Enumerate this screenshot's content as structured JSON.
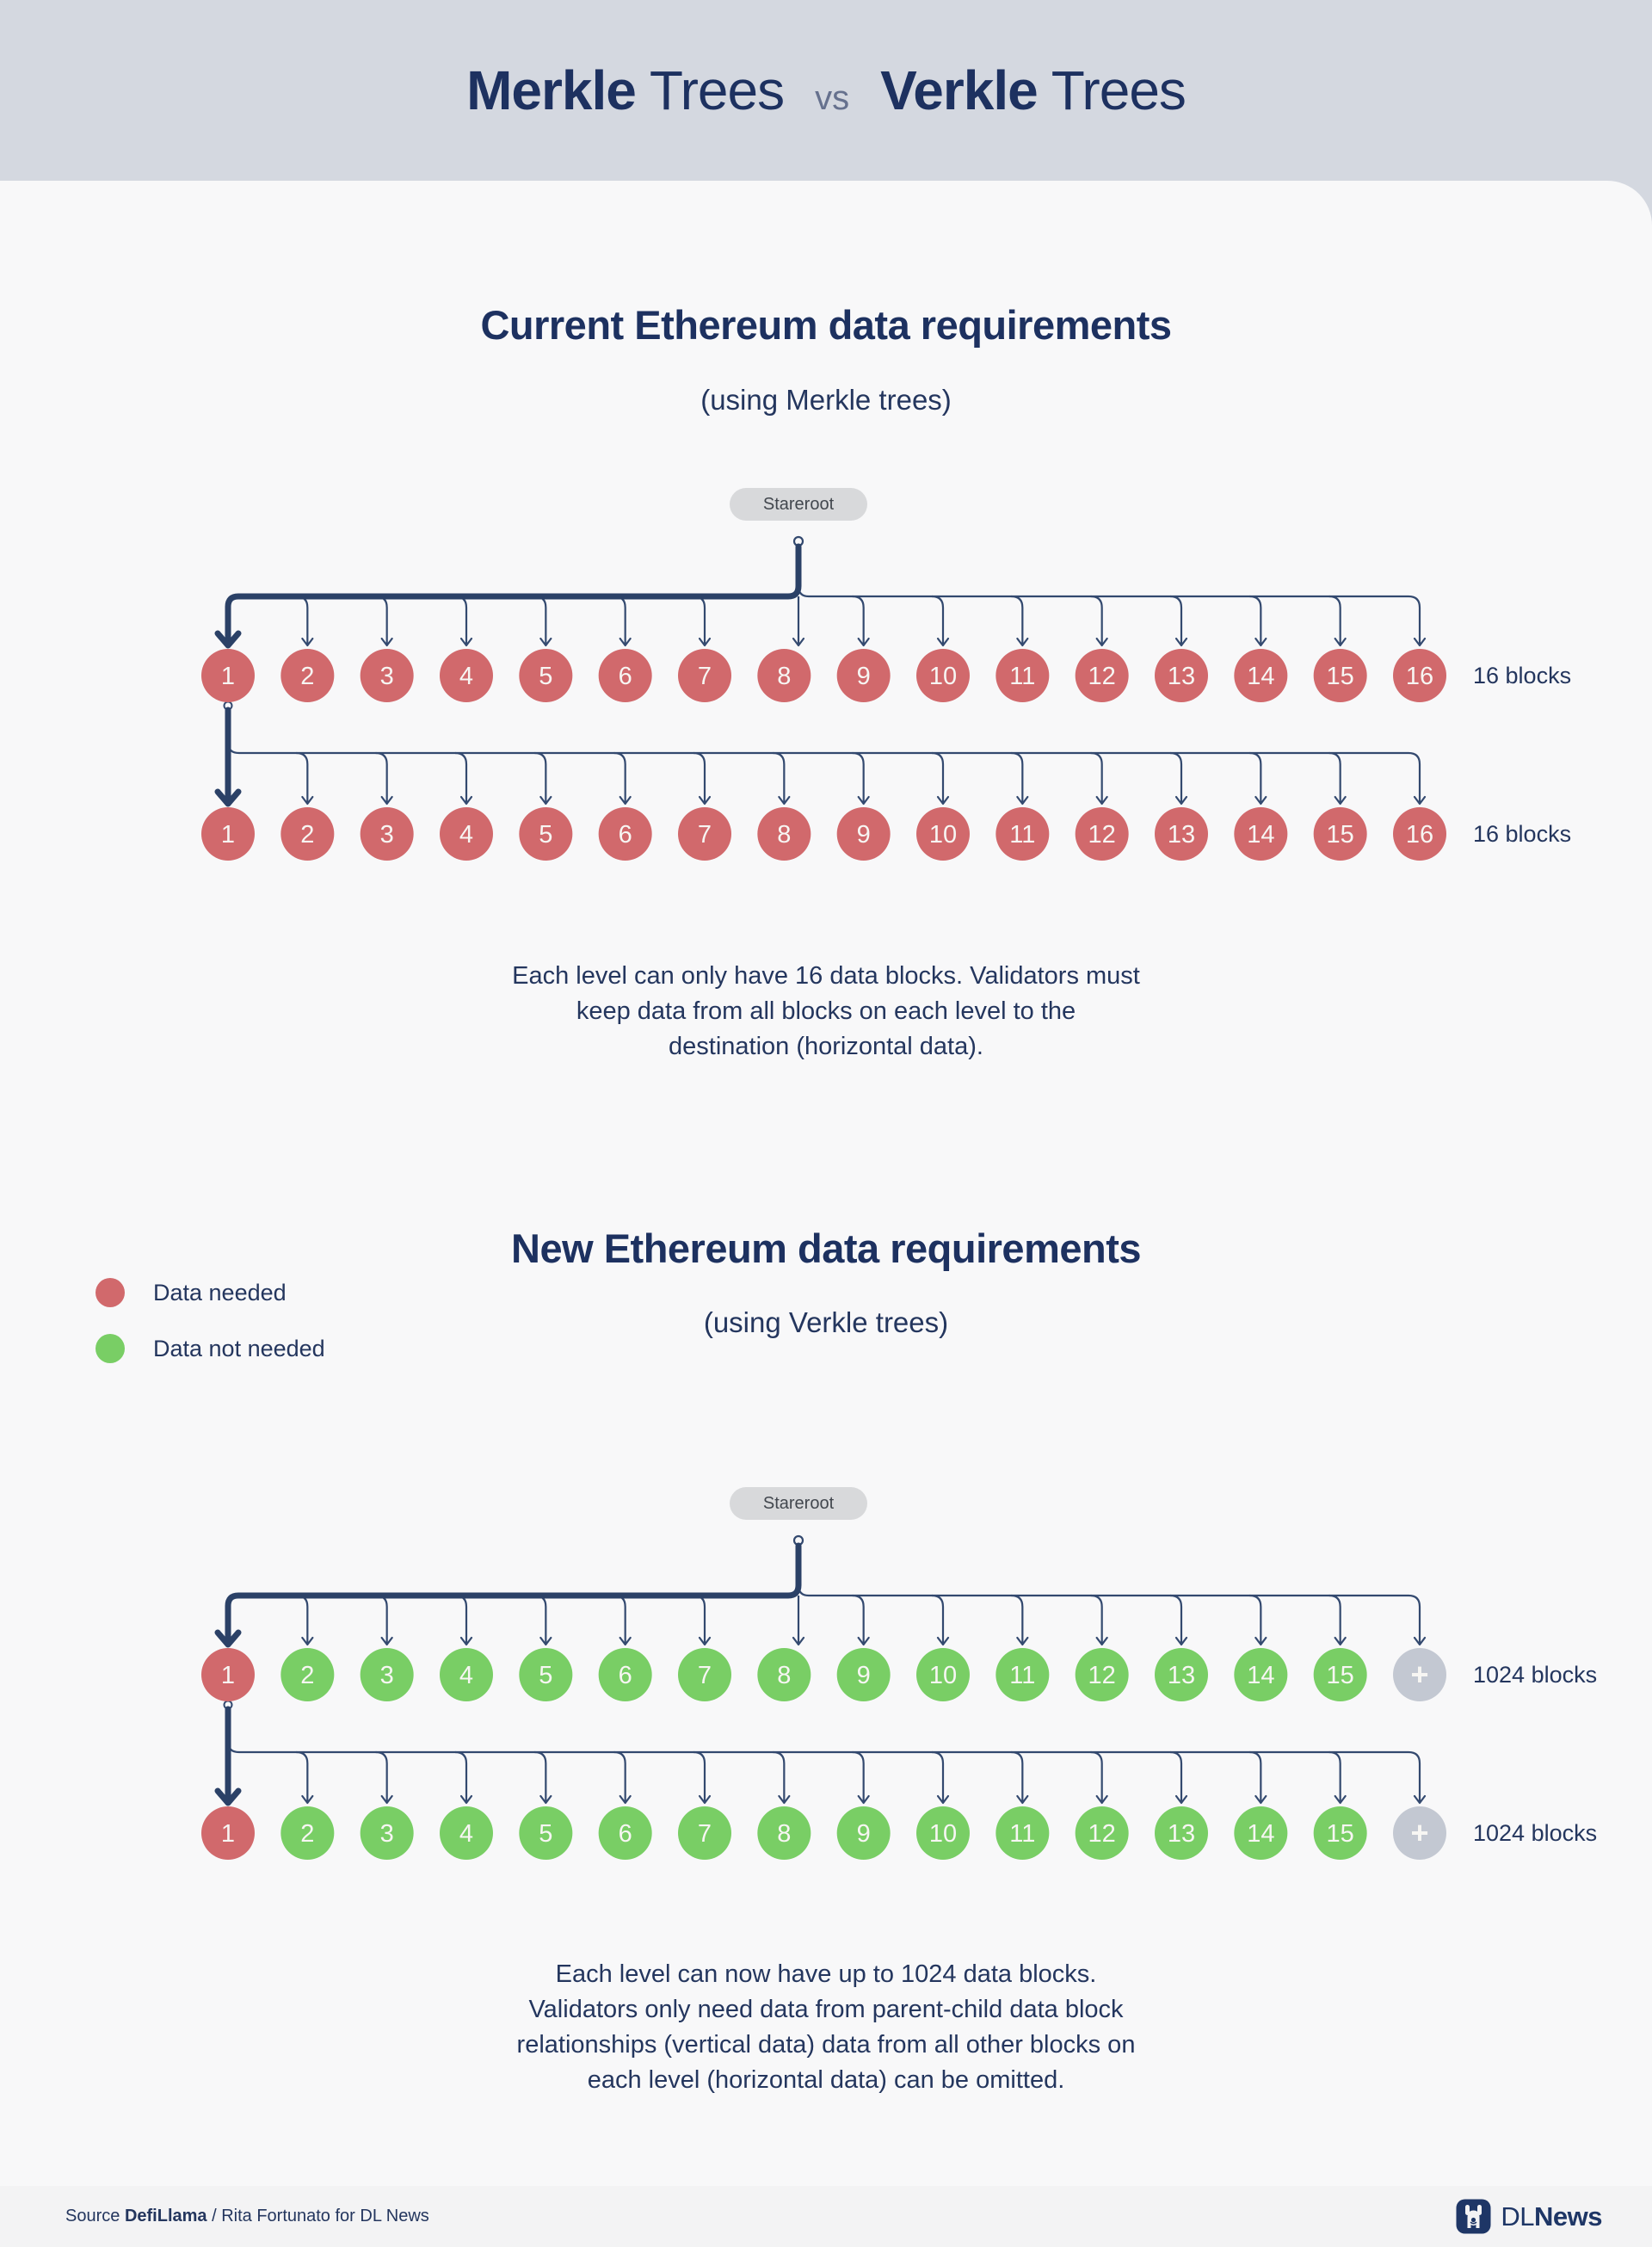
{
  "header": {
    "bold_1": "Merkle",
    "light_1": "Trees",
    "vs": "vs",
    "bold_2": "Verkle",
    "light_2": "Trees"
  },
  "legend": {
    "items": [
      {
        "label": "Data needed",
        "color": "#D1696C"
      },
      {
        "label": "Data not needed",
        "color": "#79CE65"
      }
    ]
  },
  "sections": [
    {
      "title": "Current Ethereum data requirements",
      "subtitle": "(using Merkle trees)",
      "root_label": "Stareroot",
      "row_label": "16 blocks",
      "block_labels": [
        "1",
        "2",
        "3",
        "4",
        "5",
        "6",
        "7",
        "8",
        "9",
        "10",
        "11",
        "12",
        "13",
        "14",
        "15",
        "16"
      ],
      "block_status": [
        "needed",
        "needed",
        "needed",
        "needed",
        "needed",
        "needed",
        "needed",
        "needed",
        "needed",
        "needed",
        "needed",
        "needed",
        "needed",
        "needed",
        "needed",
        "needed"
      ],
      "row_labels": [
        "16 blocks",
        "16 blocks"
      ],
      "description_lines": [
        "Each level can only have 16 data blocks. Validators must",
        "keep data from all blocks on each level to the",
        "destination (horizontal data)."
      ]
    },
    {
      "title": "New Ethereum data requirements",
      "subtitle": "(using Verkle trees)",
      "root_label": "Stareroot",
      "row_label": "1024 blocks",
      "block_labels": [
        "1",
        "2",
        "3",
        "4",
        "5",
        "6",
        "7",
        "8",
        "9",
        "10",
        "11",
        "12",
        "13",
        "14",
        "15",
        "+"
      ],
      "block_status": [
        "needed",
        "not_needed",
        "not_needed",
        "not_needed",
        "not_needed",
        "not_needed",
        "not_needed",
        "not_needed",
        "not_needed",
        "not_needed",
        "not_needed",
        "not_needed",
        "not_needed",
        "not_needed",
        "not_needed",
        "more"
      ],
      "row_labels": [
        "1024 blocks",
        "1024 blocks"
      ],
      "description_lines": [
        "Each level can now have up to 1024 data blocks.",
        "Validators only need data from parent-child data block",
        "relationships (vertical data) data from all other blocks on",
        "each level (horizontal data) can be omitted."
      ]
    }
  ],
  "footer": {
    "source_prefix": "Source ",
    "source_bold": "DefiLlama",
    "source_rest": " / Rita Fortunato for DL News",
    "brand_dl": "DL",
    "brand_news": "News"
  },
  "colors": {
    "needed": "#D1696C",
    "not_needed": "#79CE65",
    "more": "#C3C8D2",
    "line_thin": "#33496F",
    "line_thick": "#2B4167",
    "pill_bg": "#D8D9DB",
    "pill_text": "#42474E",
    "label_text": "#24365E",
    "circle_text": "#F7F6F3",
    "bg": "#F8F8F9"
  }
}
